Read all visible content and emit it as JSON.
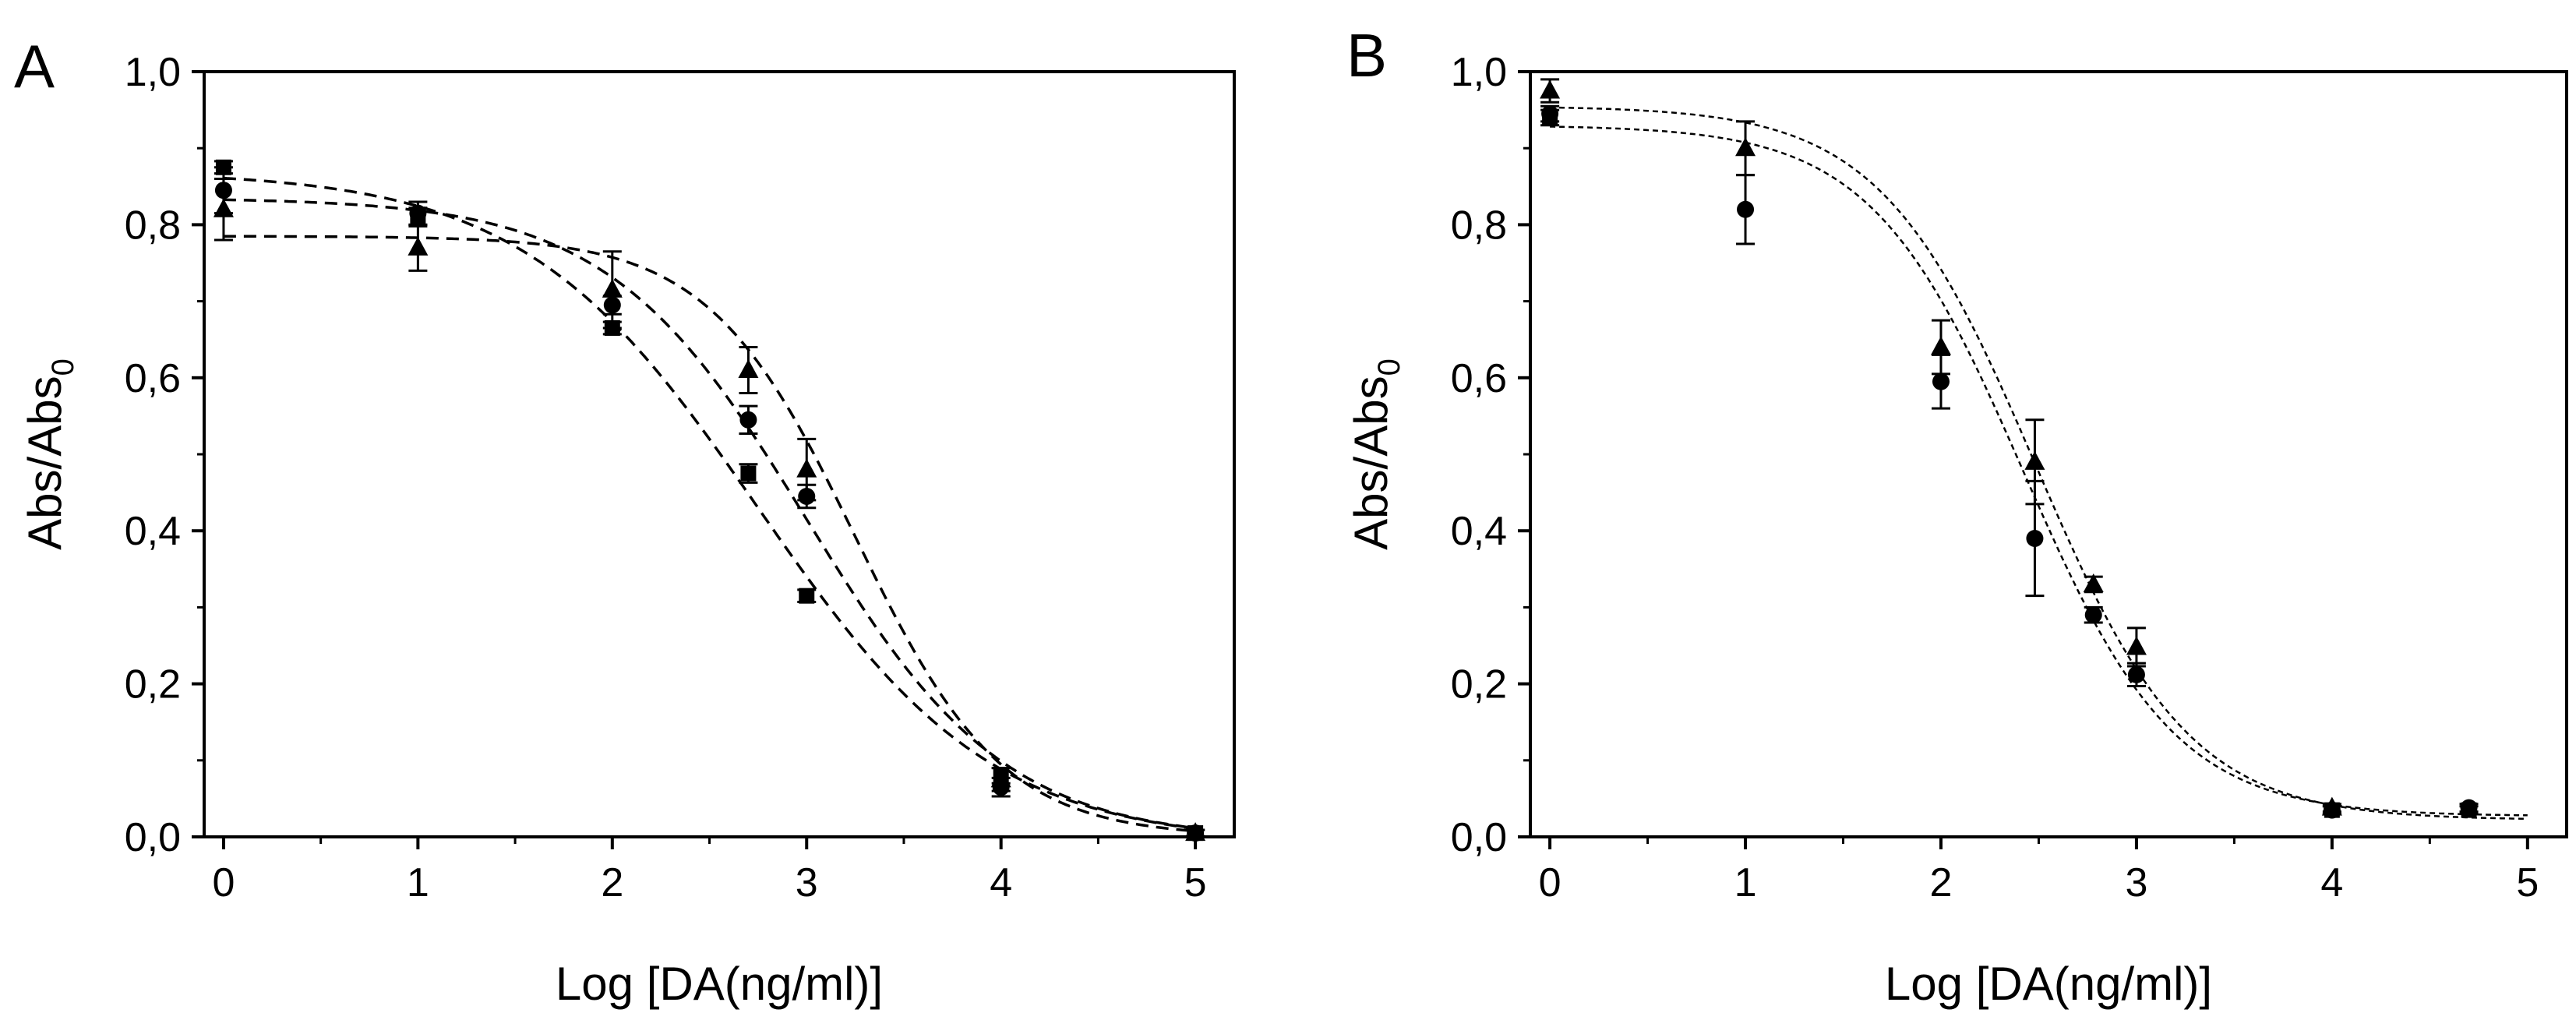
{
  "chart_data": [
    {
      "type": "scatter",
      "panel_label": "A",
      "xlabel": "Log [DA(ng/ml)]",
      "ylabel": "Abs/Abs",
      "ylabel_subscript": "0",
      "xlim": [
        -0.1,
        5.2
      ],
      "ylim": [
        0.0,
        1.0
      ],
      "xticks": [
        0,
        1,
        2,
        3,
        4,
        5
      ],
      "xtick_labels": [
        "0",
        "1",
        "2",
        "3",
        "4",
        "5"
      ],
      "yticks": [
        0.0,
        0.2,
        0.4,
        0.6,
        0.8,
        1.0
      ],
      "ytick_labels": [
        "0,0",
        "0,2",
        "0,4",
        "0,6",
        "0,8",
        "1,0"
      ],
      "grid": false,
      "fit_style": "dashed",
      "series": [
        {
          "name": "squares",
          "marker": "square",
          "points": [
            {
              "x": 0,
              "y": 0.875,
              "err": 0.008
            },
            {
              "x": 1,
              "y": 0.81,
              "err": 0.012
            },
            {
              "x": 2,
              "y": 0.665,
              "err": 0.008
            },
            {
              "x": 2.7,
              "y": 0.475,
              "err": 0.012
            },
            {
              "x": 3,
              "y": 0.315,
              "err": 0.008
            },
            {
              "x": 4,
              "y": 0.08,
              "err": 0.01
            },
            {
              "x": 5,
              "y": 0.005,
              "err": 0.004
            }
          ],
          "fit": {
            "top": 0.87,
            "bottom": -0.01,
            "logIC50": 2.75,
            "hill": 0.72
          }
        },
        {
          "name": "circles",
          "marker": "circle",
          "points": [
            {
              "x": 0,
              "y": 0.845,
              "err": 0.03
            },
            {
              "x": 1,
              "y": 0.815,
              "err": 0.015
            },
            {
              "x": 2,
              "y": 0.695,
              "err": 0.012
            },
            {
              "x": 2.7,
              "y": 0.545,
              "err": 0.018
            },
            {
              "x": 3,
              "y": 0.445,
              "err": 0.015
            },
            {
              "x": 4,
              "y": 0.065,
              "err": 0.012
            },
            {
              "x": 5,
              "y": 0.005,
              "err": 0.004
            }
          ],
          "fit": {
            "top": 0.835,
            "bottom": -0.005,
            "logIC50": 3.0,
            "hill": 0.85
          }
        },
        {
          "name": "triangles",
          "marker": "triangle",
          "points": [
            {
              "x": 0,
              "y": 0.82,
              "err": 0.04
            },
            {
              "x": 1,
              "y": 0.77,
              "err": 0.03
            },
            {
              "x": 2,
              "y": 0.715,
              "err": 0.05
            },
            {
              "x": 2.7,
              "y": 0.61,
              "err": 0.03
            },
            {
              "x": 3,
              "y": 0.48,
              "err": 0.04
            },
            {
              "x": 4,
              "y": 0.075,
              "err": 0.015
            },
            {
              "x": 5,
              "y": 0.005,
              "err": 0.004
            }
          ],
          "fit": {
            "top": 0.785,
            "bottom": 0.0,
            "logIC50": 3.25,
            "hill": 1.15
          }
        }
      ]
    },
    {
      "type": "scatter",
      "panel_label": "B",
      "xlabel": "Log [DA(ng/ml)]",
      "ylabel": "Abs/Abs",
      "ylabel_subscript": "0",
      "xlim": [
        -0.1,
        5.2
      ],
      "ylim": [
        0.0,
        1.0
      ],
      "xticks": [
        0,
        1,
        2,
        3,
        4,
        5
      ],
      "xtick_labels": [
        "0",
        "1",
        "2",
        "3",
        "4",
        "5"
      ],
      "yticks": [
        0.0,
        0.2,
        0.4,
        0.6,
        0.8,
        1.0
      ],
      "ytick_labels": [
        "0,0",
        "0,2",
        "0,4",
        "0,6",
        "0,8",
        "1,0"
      ],
      "grid": false,
      "fit_style": "dotted",
      "series": [
        {
          "name": "squares",
          "marker": "square",
          "points": [
            {
              "x": 0,
              "y": 0.94,
              "err": 0.01
            },
            {
              "x": 4,
              "y": 0.035,
              "err": 0.005
            },
            {
              "x": 4.7,
              "y": 0.035,
              "err": 0.005
            }
          ]
        },
        {
          "name": "circles",
          "marker": "circle",
          "points": [
            {
              "x": 0,
              "y": 0.945,
              "err": 0.01
            },
            {
              "x": 1,
              "y": 0.82,
              "err": 0.045
            },
            {
              "x": 2,
              "y": 0.595,
              "err": 0.035
            },
            {
              "x": 2.48,
              "y": 0.39,
              "err": 0.075
            },
            {
              "x": 2.78,
              "y": 0.29,
              "err": 0.01
            },
            {
              "x": 3,
              "y": 0.212,
              "err": 0.015
            },
            {
              "x": 4,
              "y": 0.035,
              "err": 0.005
            },
            {
              "x": 4.7,
              "y": 0.038,
              "err": 0.005
            }
          ],
          "fit": {
            "top": 0.93,
            "bottom": 0.027,
            "logIC50": 2.42,
            "hill": 1.12
          }
        },
        {
          "name": "triangles",
          "marker": "triangle",
          "points": [
            {
              "x": 0,
              "y": 0.975,
              "err": 0.015
            },
            {
              "x": 1,
              "y": 0.9,
              "err": 0.035
            },
            {
              "x": 2,
              "y": 0.64,
              "err": 0.035
            },
            {
              "x": 2.48,
              "y": 0.49,
              "err": 0.055
            },
            {
              "x": 2.78,
              "y": 0.33,
              "err": 0.01
            },
            {
              "x": 3,
              "y": 0.248,
              "err": 0.025
            },
            {
              "x": 4,
              "y": 0.038,
              "err": 0.005
            }
          ],
          "fit": {
            "top": 0.955,
            "bottom": 0.022,
            "logIC50": 2.48,
            "hill": 1.1
          }
        }
      ]
    }
  ]
}
